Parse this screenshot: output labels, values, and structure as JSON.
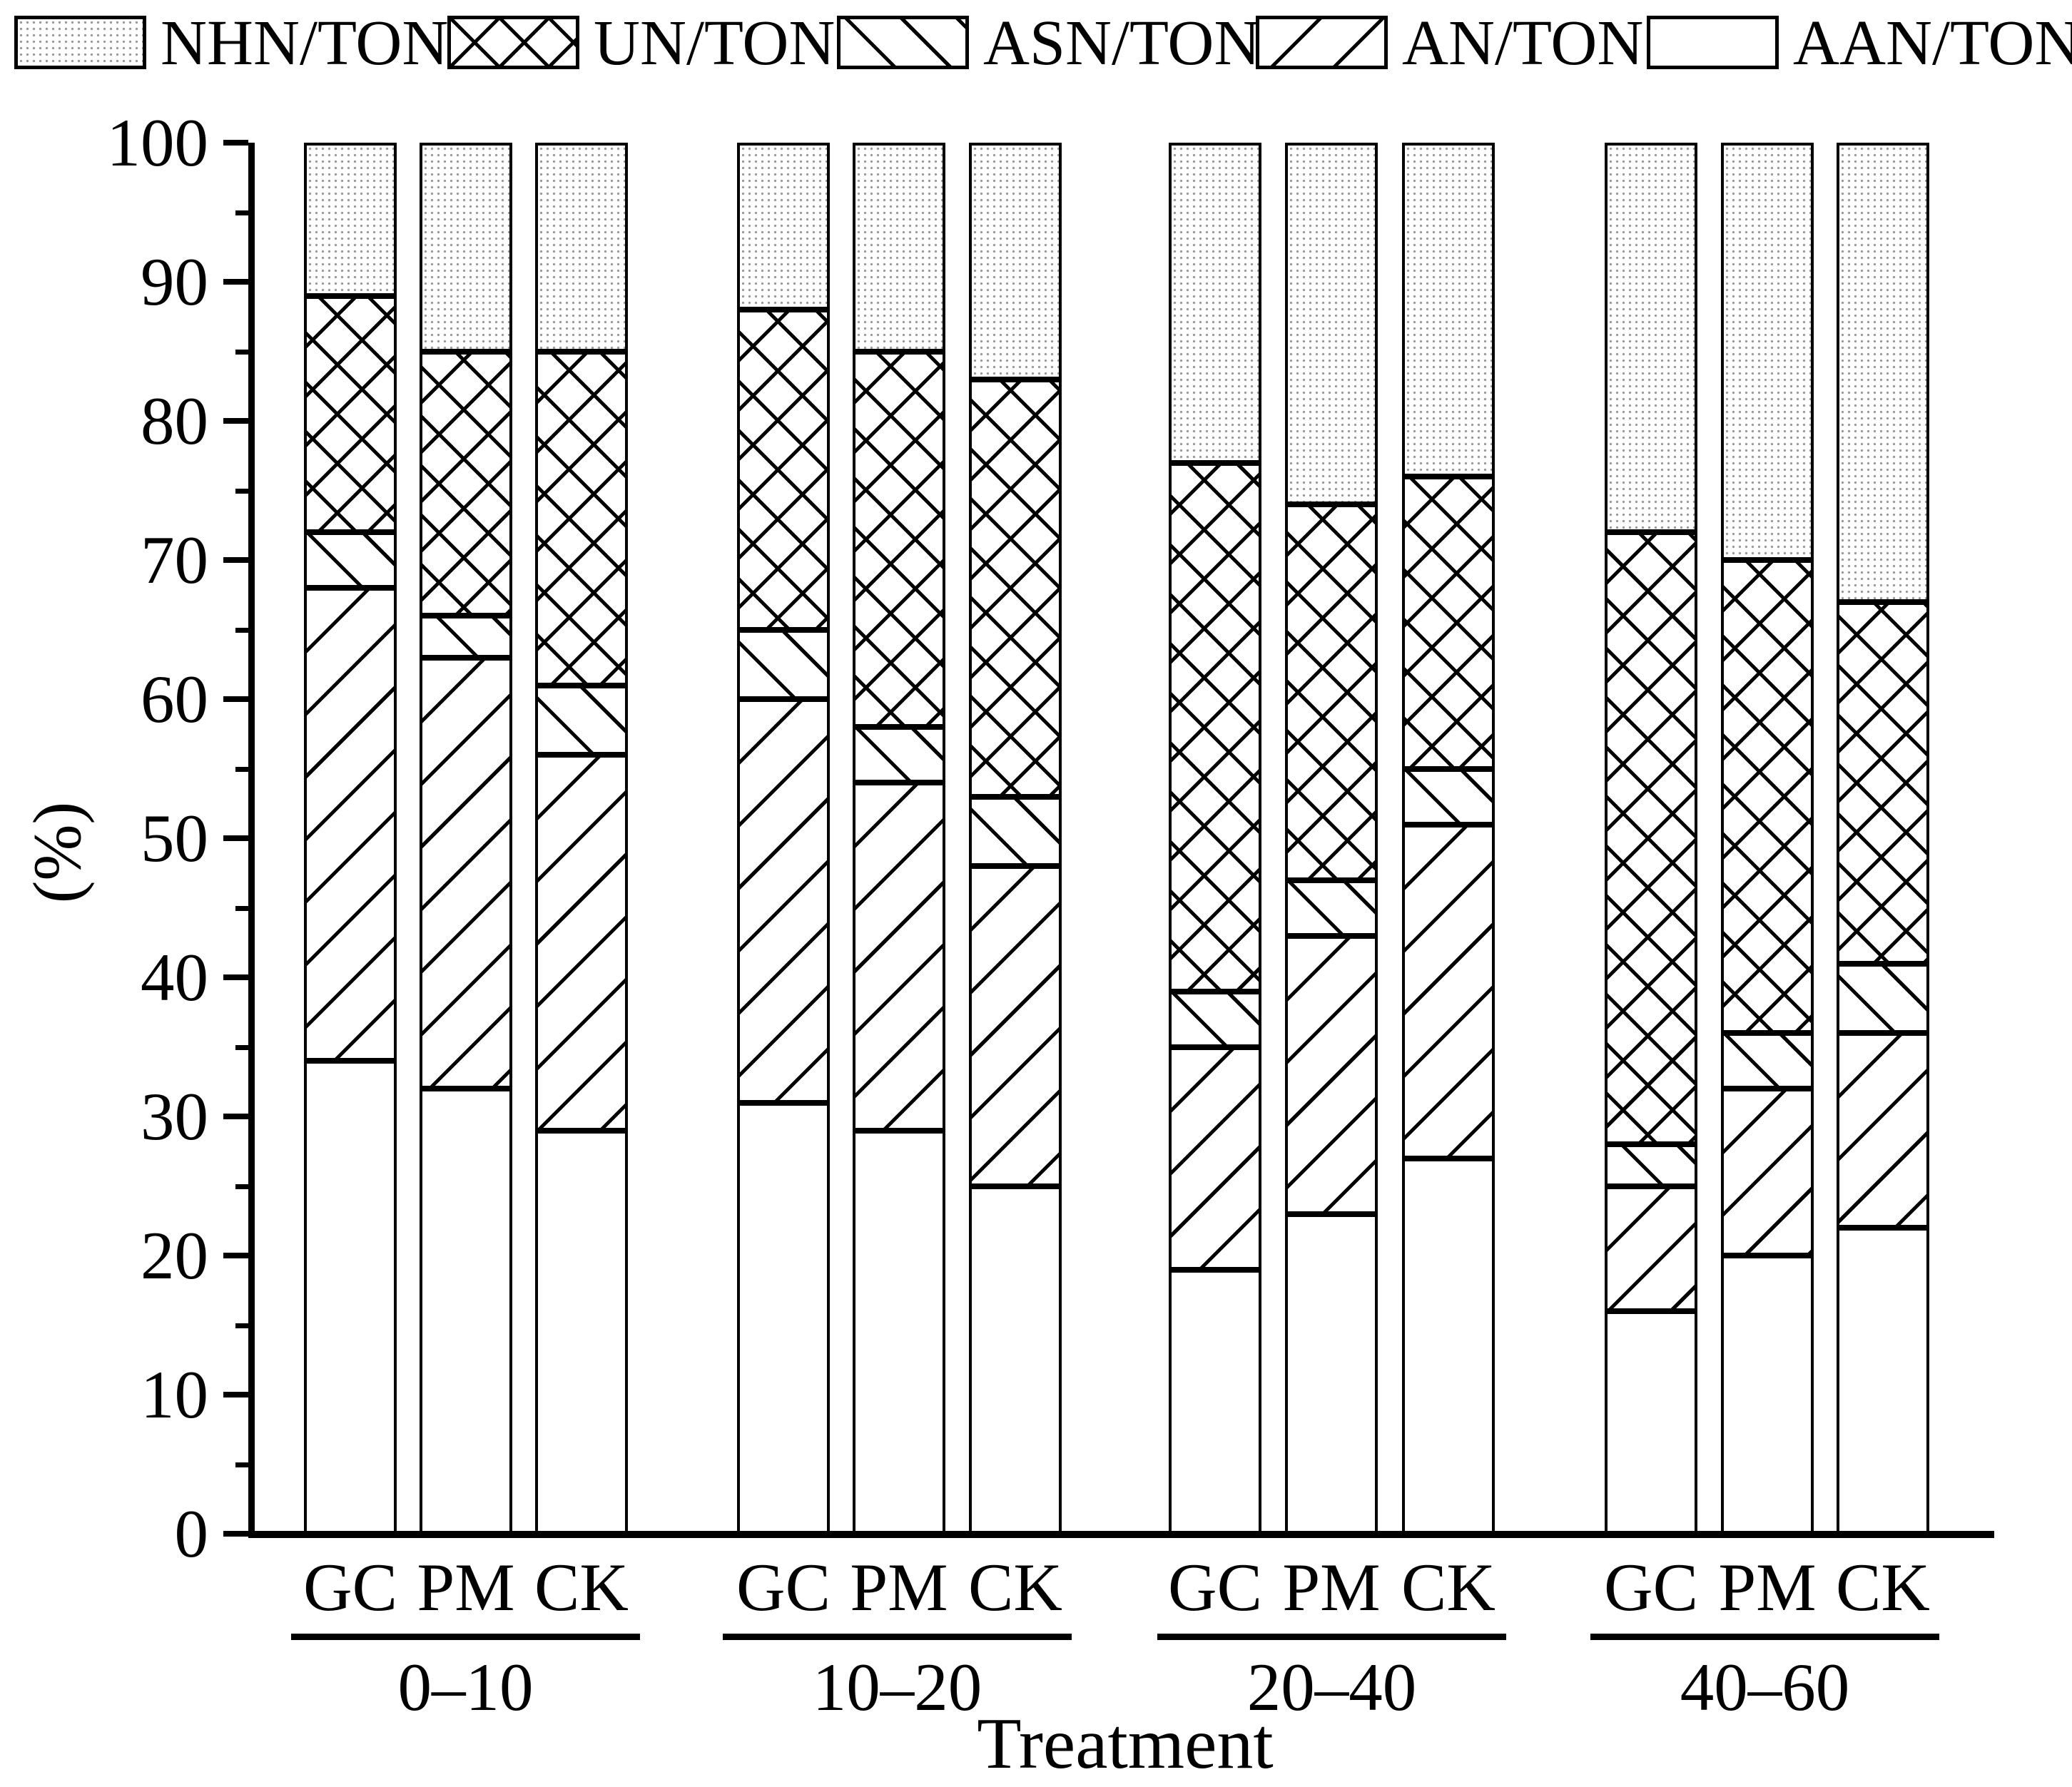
{
  "figure": {
    "background": "#ffffff",
    "ink": "#000000",
    "dot_fill_color": "#9a9a9a"
  },
  "legend": {
    "items": [
      {
        "label": "NHN/TON",
        "pattern": "dotted"
      },
      {
        "label": "UN/TON",
        "pattern": "crosshatch"
      },
      {
        "label": "ASN/TON",
        "pattern": "diagonal-down"
      },
      {
        "label": "AN/TON",
        "pattern": "diagonal-up"
      },
      {
        "label": "AAN/TON",
        "pattern": "plain"
      }
    ]
  },
  "y_axis": {
    "label": "(%)",
    "ticks": [
      0,
      10,
      20,
      30,
      40,
      50,
      60,
      70,
      80,
      90,
      100
    ],
    "minor_ticks": [
      5,
      15,
      25,
      35,
      45,
      55,
      65,
      75,
      85,
      95
    ]
  },
  "x_axis": {
    "label": "Treatment",
    "treatments": [
      "GC",
      "PM",
      "CK"
    ],
    "groups": [
      "0–10",
      "10–20",
      "20–40",
      "40–60"
    ]
  },
  "chart_data": {
    "type": "bar",
    "stacked": true,
    "title": "",
    "xlabel": "Treatment",
    "ylabel": "(%)",
    "ylim": [
      0,
      100
    ],
    "grid": false,
    "legend_position": "top",
    "group_labels": [
      "0–10",
      "10–20",
      "20–40",
      "40–60"
    ],
    "bar_labels": [
      "GC",
      "PM",
      "CK"
    ],
    "bar_order": [
      "0–10 GC",
      "0–10 PM",
      "0–10 CK",
      "10–20 GC",
      "10–20 PM",
      "10–20 CK",
      "20–40 GC",
      "20–40 PM",
      "20–40 CK",
      "40–60 GC",
      "40–60 PM",
      "40–60 CK"
    ],
    "series": [
      {
        "name": "AAN/TON",
        "pattern": "plain",
        "values": [
          34,
          32,
          29,
          31,
          29,
          25,
          19,
          23,
          27,
          16,
          20,
          22
        ]
      },
      {
        "name": "AN/TON",
        "pattern": "diagonal-up",
        "values": [
          34,
          31,
          27,
          29,
          25,
          23,
          16,
          20,
          24,
          9,
          12,
          14
        ]
      },
      {
        "name": "ASN/TON",
        "pattern": "diagonal-down",
        "values": [
          4,
          3,
          5,
          5,
          4,
          5,
          4,
          4,
          4,
          3,
          4,
          5
        ]
      },
      {
        "name": "UN/TON",
        "pattern": "crosshatch",
        "values": [
          17,
          19,
          24,
          23,
          27,
          30,
          38,
          27,
          21,
          44,
          34,
          26
        ]
      },
      {
        "name": "NHN/TON",
        "pattern": "dotted",
        "values": [
          11,
          15,
          15,
          12,
          15,
          17,
          23,
          26,
          24,
          28,
          30,
          33
        ]
      }
    ]
  }
}
